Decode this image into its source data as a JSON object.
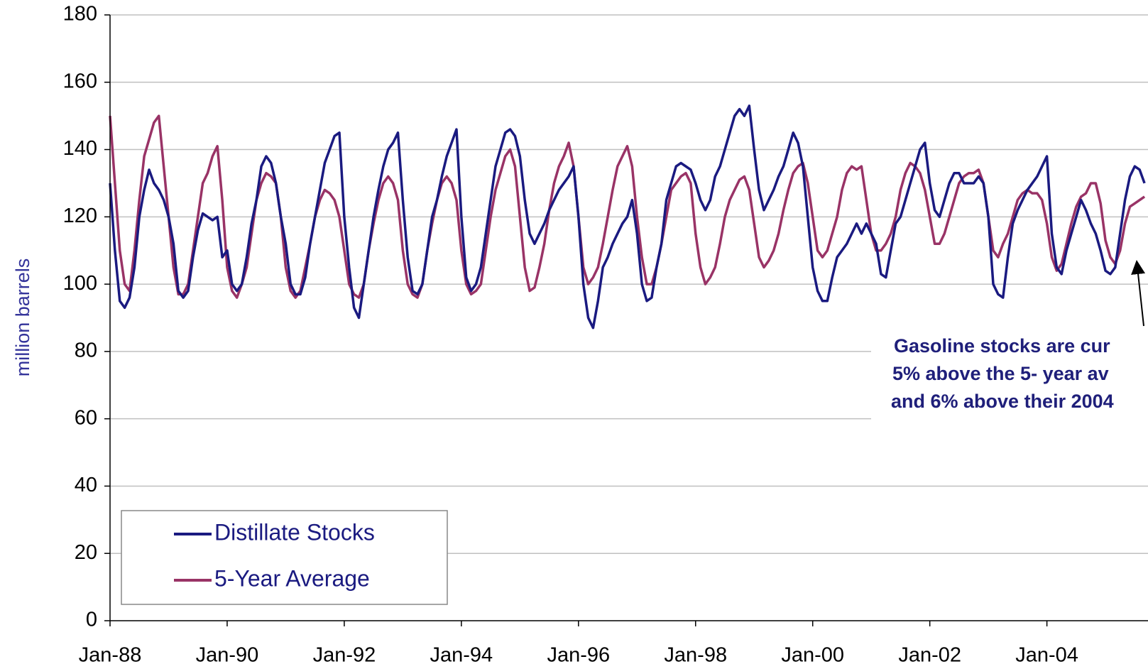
{
  "chart_data": {
    "type": "line",
    "y_label": "million barrels",
    "x": [
      "1988-01",
      "1988-02",
      "1988-03",
      "1988-04",
      "1988-05",
      "1988-06",
      "1988-07",
      "1988-08",
      "1988-09",
      "1988-10",
      "1988-11",
      "1988-12",
      "1989-01",
      "1989-02",
      "1989-03",
      "1989-04",
      "1989-05",
      "1989-06",
      "1989-07",
      "1989-08",
      "1989-09",
      "1989-10",
      "1989-11",
      "1989-12",
      "1990-01",
      "1990-02",
      "1990-03",
      "1990-04",
      "1990-05",
      "1990-06",
      "1990-07",
      "1990-08",
      "1990-09",
      "1990-10",
      "1990-11",
      "1990-12",
      "1991-01",
      "1991-02",
      "1991-03",
      "1991-04",
      "1991-05",
      "1991-06",
      "1991-07",
      "1991-08",
      "1991-09",
      "1991-10",
      "1991-11",
      "1991-12",
      "1992-01",
      "1992-02",
      "1992-03",
      "1992-04",
      "1992-05",
      "1992-06",
      "1992-07",
      "1992-08",
      "1992-09",
      "1992-10",
      "1992-11",
      "1992-12",
      "1993-01",
      "1993-02",
      "1993-03",
      "1993-04",
      "1993-05",
      "1993-06",
      "1993-07",
      "1993-08",
      "1993-09",
      "1993-10",
      "1993-11",
      "1993-12",
      "1994-01",
      "1994-02",
      "1994-03",
      "1994-04",
      "1994-05",
      "1994-06",
      "1994-07",
      "1994-08",
      "1994-09",
      "1994-10",
      "1994-11",
      "1994-12",
      "1995-01",
      "1995-02",
      "1995-03",
      "1995-04",
      "1995-05",
      "1995-06",
      "1995-07",
      "1995-08",
      "1995-09",
      "1995-10",
      "1995-11",
      "1995-12",
      "1996-01",
      "1996-02",
      "1996-03",
      "1996-04",
      "1996-05",
      "1996-06",
      "1996-07",
      "1996-08",
      "1996-09",
      "1996-10",
      "1996-11",
      "1996-12",
      "1997-01",
      "1997-02",
      "1997-03",
      "1997-04",
      "1997-05",
      "1997-06",
      "1997-07",
      "1997-08",
      "1997-09",
      "1997-10",
      "1997-11",
      "1997-12",
      "1998-01",
      "1998-02",
      "1998-03",
      "1998-04",
      "1998-05",
      "1998-06",
      "1998-07",
      "1998-08",
      "1998-09",
      "1998-10",
      "1998-11",
      "1998-12",
      "1999-01",
      "1999-02",
      "1999-03",
      "1999-04",
      "1999-05",
      "1999-06",
      "1999-07",
      "1999-08",
      "1999-09",
      "1999-10",
      "1999-11",
      "1999-12",
      "2000-01",
      "2000-02",
      "2000-03",
      "2000-04",
      "2000-05",
      "2000-06",
      "2000-07",
      "2000-08",
      "2000-09",
      "2000-10",
      "2000-11",
      "2000-12",
      "2001-01",
      "2001-02",
      "2001-03",
      "2001-04",
      "2001-05",
      "2001-06",
      "2001-07",
      "2001-08",
      "2001-09",
      "2001-10",
      "2001-11",
      "2001-12",
      "2002-01",
      "2002-02",
      "2002-03",
      "2002-04",
      "2002-05",
      "2002-06",
      "2002-07",
      "2002-08",
      "2002-09",
      "2002-10",
      "2002-11",
      "2002-12",
      "2003-01",
      "2003-02",
      "2003-03",
      "2003-04",
      "2003-05",
      "2003-06",
      "2003-07",
      "2003-08",
      "2003-09",
      "2003-10",
      "2003-11",
      "2003-12",
      "2004-01",
      "2004-02",
      "2004-03",
      "2004-04",
      "2004-05",
      "2004-06",
      "2004-07",
      "2004-08",
      "2004-09",
      "2004-10",
      "2004-11",
      "2004-12",
      "2005-01",
      "2005-02",
      "2005-03",
      "2005-04",
      "2005-05",
      "2005-06",
      "2005-07",
      "2005-08",
      "2005-09"
    ],
    "series": [
      {
        "name": "Distillate Stocks",
        "color": "#1a1a80",
        "values": [
          130,
          110,
          95,
          93,
          96,
          105,
          120,
          128,
          134,
          130,
          128,
          125,
          120,
          112,
          98,
          96,
          98,
          108,
          116,
          121,
          120,
          119,
          120,
          108,
          110,
          100,
          98,
          100,
          108,
          118,
          125,
          135,
          138,
          136,
          130,
          120,
          112,
          100,
          97,
          97,
          102,
          112,
          120,
          128,
          136,
          140,
          144,
          145,
          120,
          105,
          93,
          90,
          100,
          110,
          120,
          128,
          135,
          140,
          142,
          145,
          125,
          108,
          98,
          97,
          100,
          110,
          120,
          125,
          132,
          138,
          142,
          146,
          120,
          102,
          98,
          100,
          105,
          115,
          125,
          135,
          140,
          145,
          146,
          144,
          138,
          125,
          115,
          112,
          115,
          118,
          122,
          125,
          128,
          130,
          132,
          135,
          120,
          100,
          90,
          87,
          95,
          105,
          108,
          112,
          115,
          118,
          120,
          125,
          115,
          100,
          95,
          96,
          105,
          112,
          125,
          130,
          135,
          136,
          135,
          134,
          130,
          125,
          122,
          125,
          132,
          135,
          140,
          145,
          150,
          152,
          150,
          153,
          140,
          128,
          122,
          125,
          128,
          132,
          135,
          140,
          145,
          142,
          135,
          120,
          105,
          98,
          95,
          95,
          102,
          108,
          110,
          112,
          115,
          118,
          115,
          118,
          115,
          112,
          103,
          102,
          110,
          118,
          120,
          125,
          130,
          135,
          140,
          142,
          130,
          122,
          120,
          125,
          130,
          133,
          133,
          130,
          130,
          130,
          132,
          130,
          120,
          100,
          97,
          96,
          108,
          118,
          122,
          125,
          128,
          130,
          132,
          135,
          138,
          115,
          105,
          103,
          110,
          115,
          120,
          125,
          122,
          118,
          115,
          110,
          104,
          103,
          105,
          115,
          125,
          132,
          135,
          134,
          130
        ]
      },
      {
        "name": "5-Year Average",
        "color": "#993366",
        "values": [
          150,
          130,
          110,
          100,
          98,
          110,
          125,
          138,
          143,
          148,
          150,
          135,
          120,
          105,
          97,
          97,
          100,
          110,
          120,
          130,
          133,
          138,
          141,
          125,
          105,
          98,
          96,
          100,
          105,
          115,
          125,
          130,
          133,
          132,
          130,
          120,
          105,
          98,
          96,
          98,
          105,
          112,
          120,
          125,
          128,
          127,
          125,
          120,
          110,
          100,
          97,
          96,
          100,
          110,
          118,
          125,
          130,
          132,
          130,
          125,
          110,
          100,
          97,
          96,
          100,
          110,
          118,
          125,
          130,
          132,
          130,
          125,
          110,
          100,
          97,
          98,
          100,
          110,
          120,
          128,
          133,
          138,
          140,
          135,
          120,
          105,
          98,
          99,
          105,
          112,
          122,
          130,
          135,
          138,
          142,
          135,
          120,
          105,
          100,
          102,
          105,
          112,
          120,
          128,
          135,
          138,
          141,
          135,
          120,
          108,
          100,
          100,
          105,
          112,
          120,
          128,
          130,
          132,
          133,
          130,
          115,
          105,
          100,
          102,
          105,
          112,
          120,
          125,
          128,
          131,
          132,
          128,
          118,
          108,
          105,
          107,
          110,
          115,
          122,
          128,
          133,
          135,
          136,
          130,
          120,
          110,
          108,
          110,
          115,
          120,
          128,
          133,
          135,
          134,
          135,
          125,
          115,
          110,
          110,
          112,
          115,
          120,
          128,
          133,
          136,
          135,
          133,
          128,
          120,
          112,
          112,
          115,
          120,
          125,
          130,
          132,
          133,
          133,
          134,
          130,
          120,
          110,
          108,
          112,
          115,
          120,
          125,
          127,
          128,
          127,
          127,
          125,
          118,
          108,
          104,
          106,
          112,
          118,
          123,
          126,
          127,
          130,
          130,
          124,
          113,
          108,
          106,
          110,
          118,
          123,
          124,
          125,
          126
        ]
      }
    ],
    "xlim": [
      "1988-01",
      "2006-01"
    ],
    "xticks": [
      {
        "value": "1988-01",
        "label": "Jan-88"
      },
      {
        "value": "1990-01",
        "label": "Jan-90"
      },
      {
        "value": "1992-01",
        "label": "Jan-92"
      },
      {
        "value": "1994-01",
        "label": "Jan-94"
      },
      {
        "value": "1996-01",
        "label": "Jan-96"
      },
      {
        "value": "1998-01",
        "label": "Jan-98"
      },
      {
        "value": "2000-01",
        "label": "Jan-00"
      },
      {
        "value": "2002-01",
        "label": "Jan-02"
      },
      {
        "value": "2004-01",
        "label": "Jan-04"
      }
    ],
    "ylim": [
      0,
      180
    ],
    "yticks": [
      0,
      20,
      40,
      60,
      80,
      100,
      120,
      140,
      160,
      180
    ],
    "grid": true,
    "legend": "lower left",
    "annotation": [
      "Gasoline stocks are cur",
      "5% above the 5- year av",
      "and 6% above their 2004"
    ]
  }
}
